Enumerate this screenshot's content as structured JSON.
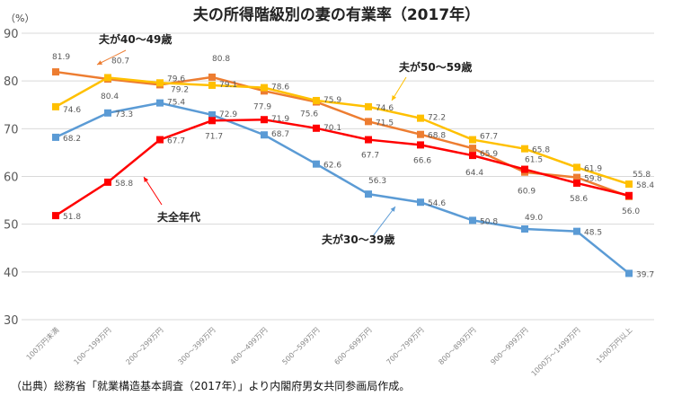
{
  "title": "夫の所得階級別の妻の有業率（2017年）",
  "unit": "（%）",
  "source": "（出典）総務省「就業構造基本調査（2017年）」より内閣府男女共同参画局作成。",
  "chart_data": {
    "type": "line",
    "title": "夫の所得階級別の妻の有業率（2017年）",
    "ylabel": "（%）",
    "ylim": [
      30,
      90
    ],
    "yticks": [
      30,
      40,
      50,
      60,
      70,
      80,
      90
    ],
    "grid": true,
    "categories": [
      "100万円未満",
      "100～199万円",
      "200～299万円",
      "300～399万円",
      "400～499万円",
      "500～599万円",
      "600～699万円",
      "700～799万円",
      "800～899万円",
      "900～999万円",
      "1000万～1499万円",
      "1500万円以上"
    ],
    "series": [
      {
        "name": "夫が30～39歳",
        "color": "#5b9bd5",
        "values": [
          68.2,
          73.3,
          75.4,
          72.9,
          68.7,
          62.6,
          56.3,
          54.6,
          50.8,
          49.0,
          48.5,
          39.7
        ]
      },
      {
        "name": "夫が40～49歳",
        "color": "#ed7d31",
        "values": [
          81.9,
          80.4,
          79.2,
          80.8,
          77.9,
          75.6,
          71.5,
          68.8,
          65.9,
          60.9,
          59.8,
          55.8
        ]
      },
      {
        "name": "夫が50～59歳",
        "color": "#ffc000",
        "values": [
          74.6,
          80.7,
          79.6,
          79.1,
          78.6,
          75.9,
          74.6,
          72.2,
          67.7,
          65.8,
          61.9,
          58.4
        ]
      },
      {
        "name": "夫全年代",
        "color": "#ff0000",
        "values": [
          51.8,
          58.8,
          67.7,
          71.7,
          71.9,
          70.1,
          67.7,
          66.6,
          64.4,
          61.5,
          58.6,
          56.0
        ]
      }
    ]
  }
}
